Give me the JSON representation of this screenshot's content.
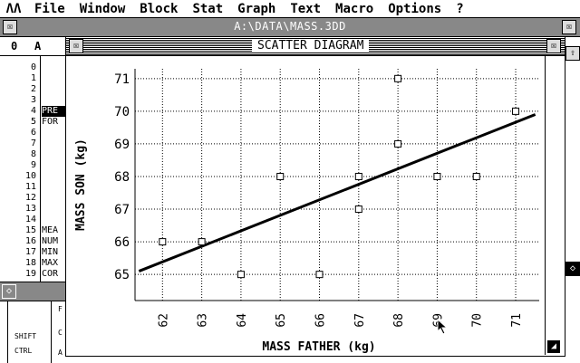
{
  "menubar": {
    "logo_icon": "atari-logo-icon",
    "items": [
      "File",
      "Window",
      "Block",
      "Stat",
      "Graph",
      "Text",
      "Macro",
      "Options",
      "?"
    ]
  },
  "background_window": {
    "title": "A:\\DATA\\MASS.3DD",
    "column_header_num": "0",
    "column_header_a": "A",
    "rows": [
      {
        "n": "0",
        "c": ""
      },
      {
        "n": "1",
        "c": ""
      },
      {
        "n": "2",
        "c": ""
      },
      {
        "n": "3",
        "c": ""
      },
      {
        "n": "4",
        "c": "PRE"
      },
      {
        "n": "5",
        "c": "FOR"
      },
      {
        "n": "6",
        "c": ""
      },
      {
        "n": "7",
        "c": ""
      },
      {
        "n": "8",
        "c": ""
      },
      {
        "n": "9",
        "c": ""
      },
      {
        "n": "10",
        "c": ""
      },
      {
        "n": "11",
        "c": ""
      },
      {
        "n": "12",
        "c": ""
      },
      {
        "n": "13",
        "c": ""
      },
      {
        "n": "14",
        "c": ""
      },
      {
        "n": "15",
        "c": "MEA"
      },
      {
        "n": "16",
        "c": "NUM"
      },
      {
        "n": "17",
        "c": "MIN"
      },
      {
        "n": "18",
        "c": "MAX"
      },
      {
        "n": "19",
        "c": "COR"
      }
    ],
    "lower_panel": {
      "shift": "SHIFT",
      "ctrl": "CTRL",
      "col_letters": [
        "F",
        "C",
        "A"
      ]
    }
  },
  "scatter_window": {
    "title": "SCATTER DIAGRAM"
  },
  "chart_data": {
    "type": "scatter",
    "title": "SCATTER DIAGRAM",
    "xlabel": "MASS FATHER (kg)",
    "ylabel": "MASS SON (kg)",
    "xlim": [
      61.3,
      71.6
    ],
    "ylim": [
      64.2,
      71.3
    ],
    "xticks": [
      62,
      63,
      64,
      65,
      66,
      67,
      68,
      69,
      70,
      71
    ],
    "yticks": [
      65,
      66,
      67,
      68,
      69,
      70,
      71
    ],
    "grid": true,
    "points": [
      {
        "x": 62,
        "y": 66
      },
      {
        "x": 63,
        "y": 66
      },
      {
        "x": 64,
        "y": 65
      },
      {
        "x": 65,
        "y": 68
      },
      {
        "x": 66,
        "y": 65
      },
      {
        "x": 67,
        "y": 67
      },
      {
        "x": 67,
        "y": 68
      },
      {
        "x": 68,
        "y": 71
      },
      {
        "x": 68,
        "y": 69
      },
      {
        "x": 69,
        "y": 68
      },
      {
        "x": 70,
        "y": 68
      },
      {
        "x": 71,
        "y": 70
      }
    ],
    "regression_line": {
      "x": [
        61.4,
        71.5
      ],
      "y": [
        65.1,
        69.9
      ]
    }
  }
}
